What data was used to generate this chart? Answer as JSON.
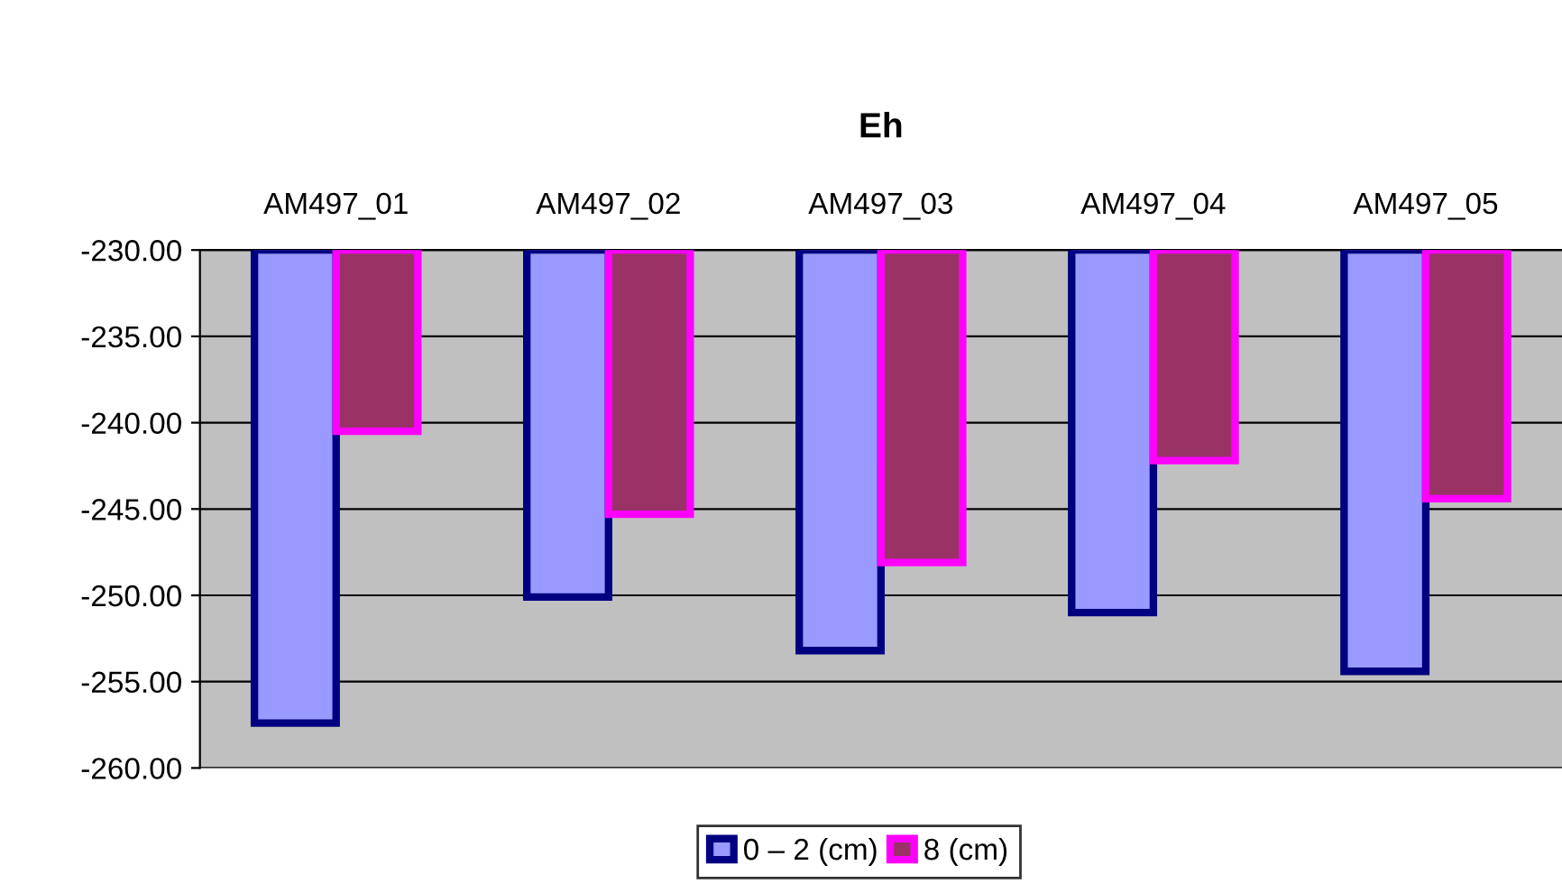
{
  "chart_data": {
    "type": "bar",
    "title": "Eh",
    "categories": [
      "AM497_01",
      "AM497_02",
      "AM497_03",
      "AM497_04",
      "AM497_05"
    ],
    "series": [
      {
        "name": "0 – 2 (cm)",
        "color": "#9999ff",
        "values": [
          -257.4,
          -250.1,
          -253.2,
          -251.0,
          -254.4
        ]
      },
      {
        "name": "8 (cm)",
        "color": "#993366",
        "values": [
          -240.5,
          -245.3,
          -248.1,
          -242.2,
          -244.4
        ]
      }
    ],
    "ylim": [
      -260,
      -230
    ],
    "yticks": [
      {
        "value": -260,
        "label": "-260.00"
      },
      {
        "value": -255,
        "label": "-255.00"
      },
      {
        "value": -250,
        "label": "-250.00"
      },
      {
        "value": -245,
        "label": "-245.00"
      },
      {
        "value": -240,
        "label": "-240.00"
      },
      {
        "value": -235,
        "label": "-235.00"
      },
      {
        "value": -230,
        "label": "-230.00"
      }
    ],
    "grid": "y",
    "legend": "bottom"
  }
}
